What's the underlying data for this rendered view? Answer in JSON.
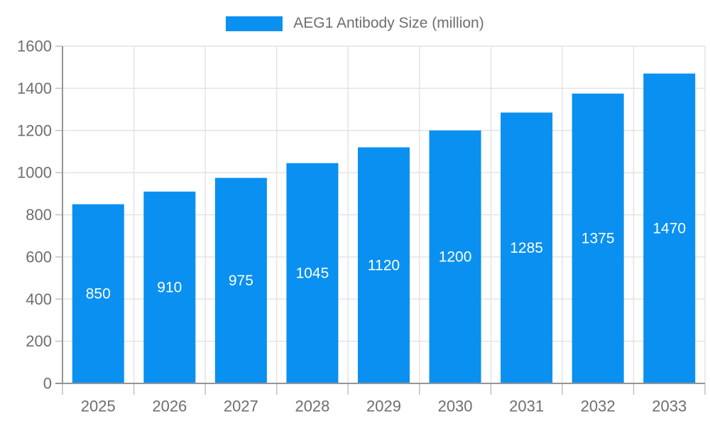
{
  "legend": {
    "label": "AEG1 Antibody Size (million)"
  },
  "chart_data": {
    "type": "bar",
    "title": "AEG1 Antibody Size (million)",
    "series_name": "AEG1 Antibody Size (million)",
    "categories": [
      "2025",
      "2026",
      "2027",
      "2028",
      "2029",
      "2030",
      "2031",
      "2032",
      "2033"
    ],
    "values": [
      850,
      910,
      975,
      1045,
      1120,
      1200,
      1285,
      1375,
      1470
    ],
    "xlabel": "",
    "ylabel": "",
    "ylim": [
      0,
      1600
    ],
    "ytick_step": 200,
    "ytick_labels": [
      "0",
      "200",
      "400",
      "600",
      "800",
      "1000",
      "1200",
      "1400",
      "1600"
    ],
    "grid": true,
    "legend_position": "top",
    "colors": {
      "bar": "#0a90f0",
      "value_label": "#ffffff",
      "axis_line": "#959595",
      "tick": "#c0c0c0",
      "gridline": "#e4e4e4",
      "tick_label": "#6e6e6e",
      "background": "#ffffff"
    }
  }
}
